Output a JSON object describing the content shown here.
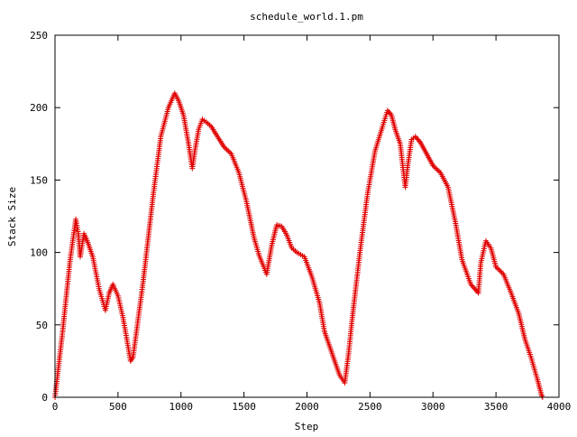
{
  "chart_data": {
    "type": "line",
    "title": "schedule_world.1.pm",
    "xlabel": "Step",
    "ylabel": "Stack Size",
    "xlim": [
      0,
      4000
    ],
    "ylim": [
      0,
      250
    ],
    "x_ticks": [
      0,
      500,
      1000,
      1500,
      2000,
      2500,
      3000,
      3500,
      4000
    ],
    "y_ticks": [
      0,
      50,
      100,
      150,
      200,
      250
    ],
    "grid": false,
    "legend": "none",
    "marker": "plus",
    "series": [
      {
        "color": "#e00000",
        "x": [
          0,
          60,
          120,
          165,
          185,
          200,
          230,
          260,
          300,
          350,
          400,
          430,
          460,
          500,
          540,
          600,
          620,
          700,
          780,
          840,
          900,
          950,
          980,
          1020,
          1060,
          1090,
          1110,
          1140,
          1170,
          1200,
          1240,
          1290,
          1340,
          1400,
          1460,
          1520,
          1580,
          1620,
          1680,
          1720,
          1760,
          1800,
          1840,
          1880,
          1920,
          1980,
          2040,
          2100,
          2140,
          2180,
          2220,
          2260,
          2300,
          2330,
          2360,
          2420,
          2480,
          2540,
          2600,
          2640,
          2670,
          2700,
          2740,
          2780,
          2800,
          2830,
          2860,
          2900,
          2950,
          3000,
          3060,
          3120,
          3180,
          3230,
          3300,
          3360,
          3380,
          3420,
          3460,
          3500,
          3560,
          3620,
          3680,
          3730,
          3780,
          3830,
          3860,
          3870
        ],
        "y": [
          0,
          45,
          95,
          123,
          113,
          97,
          113,
          107,
          97,
          75,
          60,
          72,
          78,
          70,
          55,
          25,
          28,
          80,
          140,
          180,
          200,
          210,
          205,
          195,
          175,
          158,
          170,
          185,
          192,
          190,
          187,
          180,
          173,
          168,
          155,
          135,
          110,
          98,
          85,
          105,
          119,
          118,
          112,
          103,
          100,
          97,
          83,
          65,
          45,
          35,
          25,
          15,
          10,
          30,
          55,
          100,
          140,
          170,
          187,
          198,
          195,
          185,
          175,
          145,
          160,
          178,
          180,
          176,
          168,
          160,
          155,
          145,
          120,
          95,
          78,
          72,
          93,
          108,
          103,
          90,
          85,
          72,
          58,
          40,
          27,
          12,
          2,
          0
        ]
      }
    ]
  }
}
